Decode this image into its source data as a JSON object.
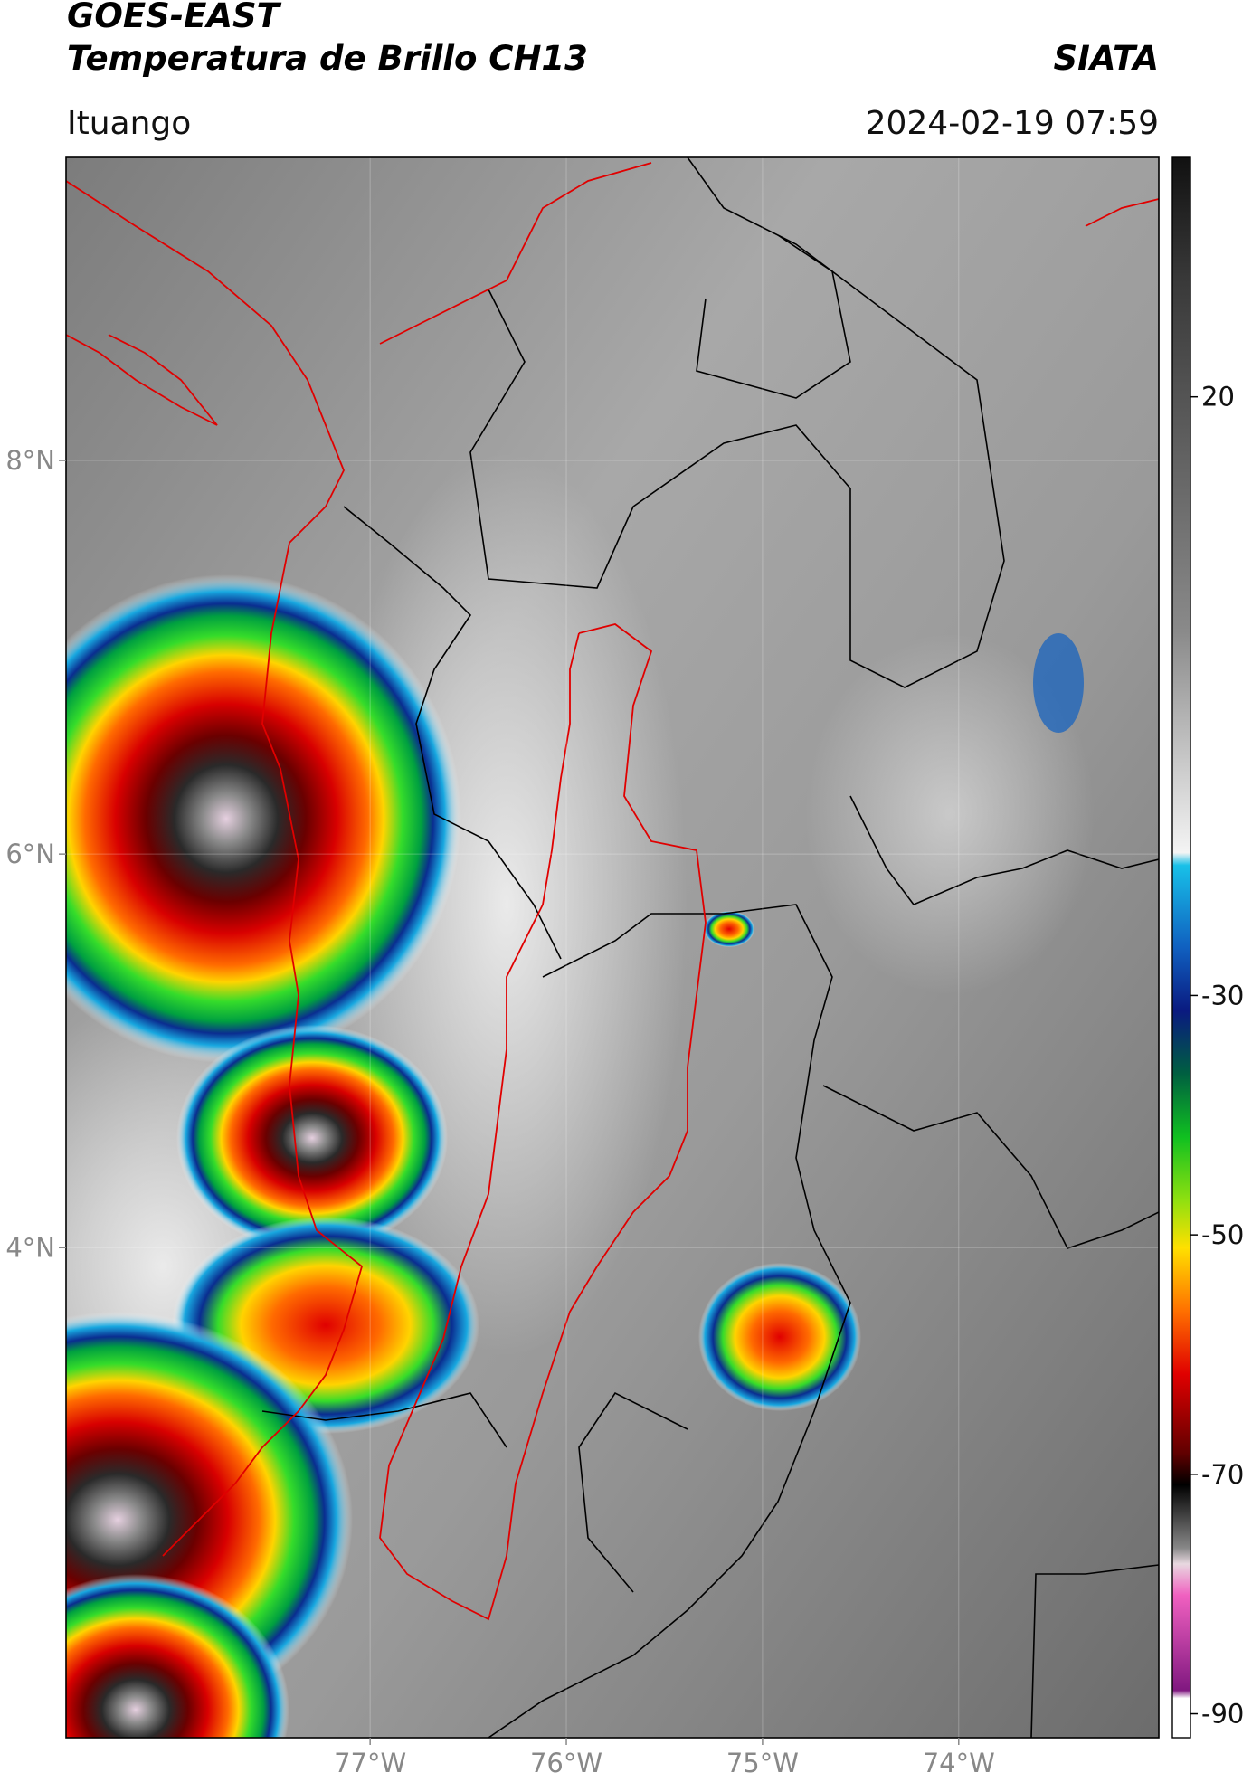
{
  "header": {
    "title_line1": "GOES-EAST",
    "title_line2": "Temperatura de Brillo CH13",
    "brand": "SIATA",
    "location": "Ituango",
    "datetime": "2024-02-19 07:59"
  },
  "map": {
    "xlim": [
      -78.55,
      -72.98
    ],
    "ylim": [
      1.51,
      9.54
    ],
    "xticks": [
      {
        "value": -77,
        "label": "77°W"
      },
      {
        "value": -76,
        "label": "76°W"
      },
      {
        "value": -75,
        "label": "75°W"
      },
      {
        "value": -74,
        "label": "74°W"
      }
    ],
    "yticks": [
      {
        "value": 8,
        "label": "8°N"
      },
      {
        "value": 6,
        "label": "6°N"
      },
      {
        "value": 4,
        "label": "4°N"
      }
    ]
  },
  "colorbar": {
    "clim": [
      -92,
      40
    ],
    "ticks": [
      20,
      -30,
      -50,
      -70,
      -90
    ]
  }
}
